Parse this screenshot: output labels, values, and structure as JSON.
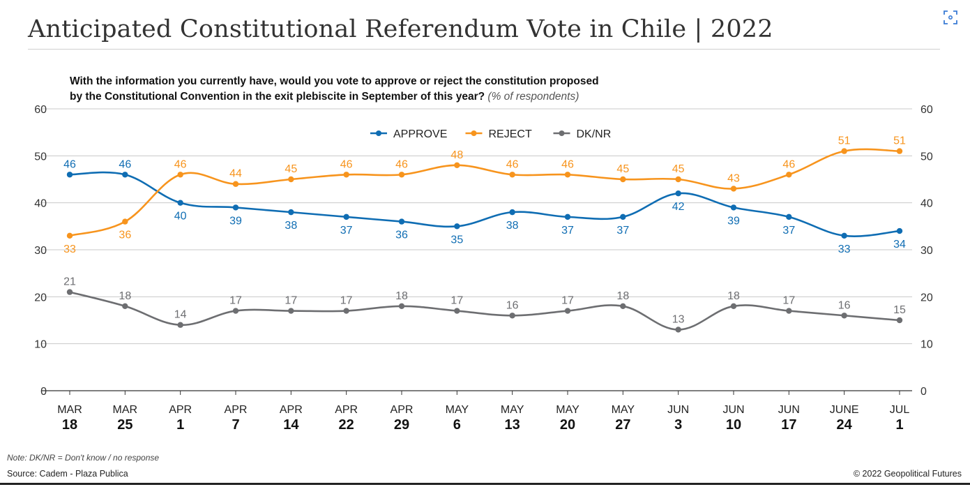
{
  "header": {
    "title": "Anticipated Constitutional Referendum Vote in Chile | 2022",
    "expand_icon": "expand-icon"
  },
  "subtitle": {
    "line1": "With the information you currently have, would you vote to approve or reject the constitution proposed",
    "line2": "by the Constitutional Convention in the exit plebiscite in September of this year?",
    "note": "(% of respondents)"
  },
  "footer": {
    "note": "Note: DK/NR = Don't know / no response",
    "source": "Source: Cadem - Plaza Publica",
    "copyright": "© 2022 Geopolitical Futures"
  },
  "chart_data": {
    "type": "line",
    "title": "Anticipated Constitutional Referendum Vote in Chile | 2022",
    "categories": [
      {
        "month": "MAR",
        "day": "18"
      },
      {
        "month": "MAR",
        "day": "25"
      },
      {
        "month": "APR",
        "day": "1"
      },
      {
        "month": "APR",
        "day": "7"
      },
      {
        "month": "APR",
        "day": "14"
      },
      {
        "month": "APR",
        "day": "22"
      },
      {
        "month": "APR",
        "day": "29"
      },
      {
        "month": "MAY",
        "day": "6"
      },
      {
        "month": "MAY",
        "day": "13"
      },
      {
        "month": "MAY",
        "day": "20"
      },
      {
        "month": "MAY",
        "day": "27"
      },
      {
        "month": "JUN",
        "day": "3"
      },
      {
        "month": "JUN",
        "day": "10"
      },
      {
        "month": "JUN",
        "day": "17"
      },
      {
        "month": "JUNE",
        "day": "24"
      },
      {
        "month": "JUL",
        "day": "1"
      }
    ],
    "ylim": [
      0,
      60
    ],
    "yticks": [
      0,
      10,
      20,
      30,
      40,
      50,
      60
    ],
    "grid": true,
    "legend_position": "top-center",
    "series": [
      {
        "name": "APPROVE",
        "color": "#0f6db3",
        "values": [
          46,
          46,
          40,
          39,
          38,
          37,
          36,
          35,
          38,
          37,
          37,
          42,
          39,
          37,
          33,
          34
        ],
        "label_below": [
          false,
          false,
          true,
          true,
          true,
          true,
          true,
          true,
          true,
          true,
          true,
          true,
          true,
          true,
          true,
          true
        ]
      },
      {
        "name": "REJECT",
        "color": "#f7941d",
        "values": [
          33,
          36,
          46,
          44,
          45,
          46,
          46,
          48,
          46,
          46,
          45,
          45,
          43,
          46,
          51,
          51
        ],
        "label_below": [
          true,
          true,
          false,
          false,
          false,
          false,
          false,
          false,
          false,
          false,
          false,
          false,
          false,
          false,
          false,
          false
        ]
      },
      {
        "name": "DK/NR",
        "color": "#6d6e71",
        "values": [
          21,
          18,
          14,
          17,
          17,
          17,
          18,
          17,
          16,
          17,
          18,
          13,
          18,
          17,
          16,
          15
        ],
        "label_below": [
          false,
          false,
          false,
          false,
          false,
          false,
          false,
          false,
          false,
          false,
          false,
          false,
          false,
          false,
          false,
          false
        ]
      }
    ]
  }
}
